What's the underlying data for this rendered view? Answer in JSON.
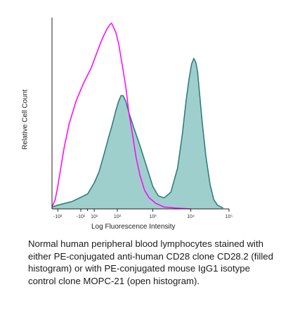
{
  "chart_data": {
    "type": "area",
    "xlabel": "Log Fluorescence Intensity",
    "ylabel": "Relative Cell Count",
    "x_scale": "biexponential (log)",
    "x_ticks": [
      "-10²",
      "-10¹",
      "10¹",
      "10²",
      "10³",
      "10⁴",
      "10⁵"
    ],
    "grid": false,
    "legend": "none",
    "series": [
      {
        "style": "filled",
        "color": "#9fcfcc",
        "edge_color": "#2f7f7a",
        "points": [
          [
            -150,
            1
          ],
          [
            -100,
            2
          ],
          [
            -30,
            4
          ],
          [
            0,
            8
          ],
          [
            10,
            14
          ],
          [
            20,
            20
          ],
          [
            35,
            30
          ],
          [
            50,
            38
          ],
          [
            70,
            46
          ],
          [
            90,
            53
          ],
          [
            110,
            58
          ],
          [
            130,
            61
          ],
          [
            150,
            61
          ],
          [
            180,
            58
          ],
          [
            220,
            52
          ],
          [
            300,
            44
          ],
          [
            450,
            34
          ],
          [
            700,
            22
          ],
          [
            1000,
            12
          ],
          [
            1400,
            7
          ],
          [
            2000,
            6
          ],
          [
            3000,
            9
          ],
          [
            4500,
            22
          ],
          [
            6000,
            40
          ],
          [
            7500,
            58
          ],
          [
            9000,
            70
          ],
          [
            10500,
            78
          ],
          [
            12000,
            81
          ],
          [
            13500,
            79
          ],
          [
            15000,
            74
          ],
          [
            17000,
            62
          ],
          [
            20000,
            46
          ],
          [
            25000,
            28
          ],
          [
            32000,
            13
          ],
          [
            40000,
            5
          ],
          [
            50000,
            2
          ],
          [
            70000,
            0.5
          ]
        ]
      },
      {
        "style": "open",
        "color": "#ff00ff",
        "points": [
          [
            -150,
            1
          ],
          [
            -120,
            5
          ],
          [
            -100,
            12
          ],
          [
            -80,
            22
          ],
          [
            -60,
            34
          ],
          [
            -40,
            46
          ],
          [
            -20,
            58
          ],
          [
            -5,
            68
          ],
          [
            5,
            76
          ],
          [
            15,
            84
          ],
          [
            25,
            90
          ],
          [
            35,
            94
          ],
          [
            45,
            97
          ],
          [
            55,
            99
          ],
          [
            65,
            100
          ],
          [
            75,
            98
          ],
          [
            90,
            95
          ],
          [
            110,
            89
          ],
          [
            140,
            78
          ],
          [
            180,
            66
          ],
          [
            220,
            52
          ],
          [
            280,
            40
          ],
          [
            350,
            28
          ],
          [
            450,
            18
          ],
          [
            600,
            10
          ],
          [
            800,
            6
          ],
          [
            1200,
            3
          ],
          [
            2000,
            1
          ],
          [
            4000,
            0.5
          ],
          [
            10000,
            0
          ]
        ]
      }
    ]
  },
  "caption": "Normal human peripheral blood lymphocytes stained with either PE-conjugated anti-human CD28 clone CD28.2 (filled histogram) or with PE-conjugated mouse IgG1 isotype control clone MOPC-21 (open histogram)."
}
